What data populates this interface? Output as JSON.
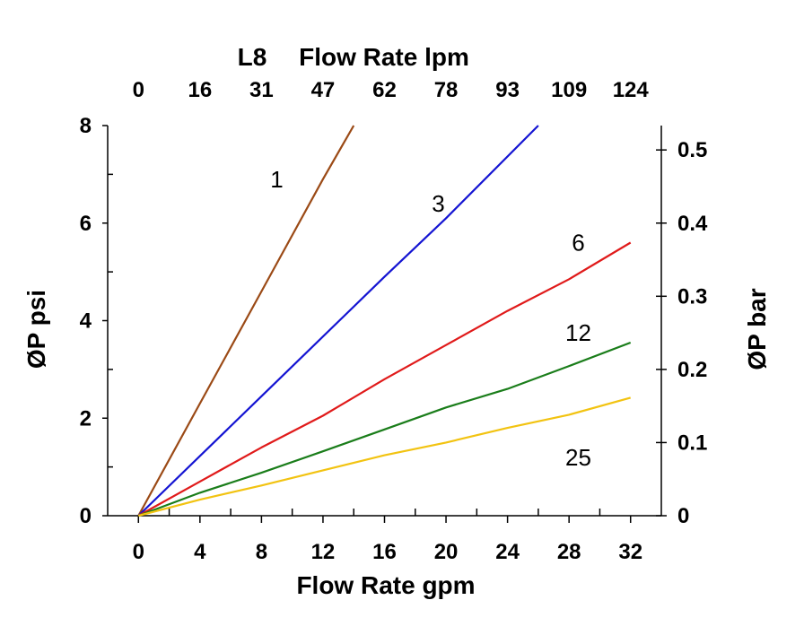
{
  "chart_data": {
    "type": "line",
    "title_prefix": "L8",
    "top_axis_title": "Flow Rate lpm",
    "xlabel": "Flow Rate gpm",
    "ylabel_left": "ØP psi",
    "ylabel_right": "ØP bar",
    "xlim": [
      -2,
      34
    ],
    "ylim": [
      0,
      8
    ],
    "x_ticks": [
      0,
      4,
      8,
      12,
      16,
      20,
      24,
      28,
      32
    ],
    "x_minor_ticks": [
      2,
      6,
      10,
      14,
      18,
      22,
      26,
      30
    ],
    "y_ticks": [
      0,
      2,
      4,
      6,
      8
    ],
    "y_minor_ticks": [
      1,
      3,
      5,
      7
    ],
    "top_ticks": [
      {
        "gpm": 0,
        "label": "0"
      },
      {
        "gpm": 4,
        "label": "16"
      },
      {
        "gpm": 8,
        "label": "31"
      },
      {
        "gpm": 12,
        "label": "47"
      },
      {
        "gpm": 16,
        "label": "62"
      },
      {
        "gpm": 20,
        "label": "78"
      },
      {
        "gpm": 24,
        "label": "93"
      },
      {
        "gpm": 28,
        "label": "109"
      },
      {
        "gpm": 32,
        "label": "124"
      }
    ],
    "right_ticks": [
      {
        "psi": 0,
        "label": "0"
      },
      {
        "psi": 1.5,
        "label": "0.1"
      },
      {
        "psi": 3.0,
        "label": "0.2"
      },
      {
        "psi": 4.5,
        "label": "0.3"
      },
      {
        "psi": 6.0,
        "label": "0.4"
      },
      {
        "psi": 7.5,
        "label": "0.5"
      }
    ],
    "series": [
      {
        "name": "1",
        "color": "#9b4a16",
        "x": [
          0,
          4,
          8,
          12,
          14
        ],
        "y": [
          0,
          2.3,
          4.6,
          6.9,
          8.0
        ],
        "label_at": [
          9,
          6.9
        ]
      },
      {
        "name": "3",
        "color": "#1414d2",
        "x": [
          0,
          8,
          16,
          20,
          26
        ],
        "y": [
          0,
          2.45,
          4.9,
          6.1,
          8.0
        ],
        "label_at": [
          19.5,
          6.4
        ]
      },
      {
        "name": "6",
        "color": "#e01a1a",
        "x": [
          0,
          4,
          8,
          12,
          16,
          20,
          24,
          28,
          32
        ],
        "y": [
          0,
          0.7,
          1.4,
          2.05,
          2.8,
          3.5,
          4.2,
          4.85,
          5.6
        ],
        "label_at": [
          28.6,
          5.6
        ]
      },
      {
        "name": "12",
        "color": "#1a7d1a",
        "x": [
          0,
          4,
          8,
          12,
          16,
          20,
          24,
          28,
          32
        ],
        "y": [
          0,
          0.47,
          0.88,
          1.32,
          1.77,
          2.22,
          2.6,
          3.07,
          3.55
        ],
        "label_at": [
          28.6,
          3.75
        ]
      },
      {
        "name": "25",
        "color": "#f2c311",
        "x": [
          0,
          4,
          8,
          12,
          16,
          20,
          24,
          28,
          32
        ],
        "y": [
          0,
          0.33,
          0.62,
          0.93,
          1.24,
          1.5,
          1.8,
          2.07,
          2.42
        ],
        "label_at": [
          28.6,
          1.2
        ]
      }
    ]
  }
}
